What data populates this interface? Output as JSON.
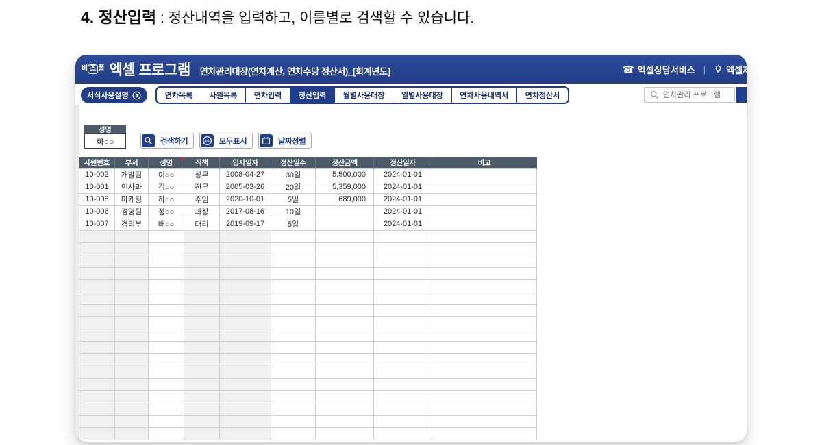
{
  "colors": {
    "accent_navy": "#1e3d8c",
    "header_navy": "#23408d",
    "table_header_slate": "#4d5a68",
    "empty_row_shade": "#f1f1f1"
  },
  "page": {
    "heading_bold": "4. 정산입력",
    "heading_rest": " : 정산내역을 입력하고, 이름별로 검색할 수 있습니다."
  },
  "header": {
    "badge_parts": [
      "비",
      "즈",
      "폼"
    ],
    "brand_title": "엑셀 프로그램",
    "subtitle": "연차관리대장(연차계산, 연차수당 정산서)_[회계년도]",
    "icons": {
      "phone_glyph": "☎",
      "phone_name": "phone-icon",
      "bulb_name": "lightbulb-icon"
    },
    "support_label": "엑셀상담서비스",
    "divider": "|",
    "request_label": "엑셀제"
  },
  "toolbar": {
    "guide_button_label": "서식사용설명",
    "tabs": [
      {
        "label": "연차목록",
        "active": false
      },
      {
        "label": "사원목록",
        "active": false
      },
      {
        "label": "연차입력",
        "active": false
      },
      {
        "label": "정산입력",
        "active": true
      },
      {
        "label": "월별사용대장",
        "active": false
      },
      {
        "label": "일별사용대장",
        "active": false
      },
      {
        "label": "연차사용내역서",
        "active": false
      },
      {
        "label": "연차정산서",
        "active": false
      }
    ],
    "search": {
      "placeholder": "연차관리 프로그램"
    }
  },
  "filter": {
    "name_label": "성명",
    "name_value": "하○○",
    "buttons": [
      {
        "icon": "search-icon",
        "label": "검색하기"
      },
      {
        "icon": "all-icon",
        "icon_text": "ALL",
        "label": "모두표시"
      },
      {
        "icon": "calendar-icon",
        "label": "날짜정렬"
      }
    ]
  },
  "table": {
    "columns": [
      "사원번호",
      "부서",
      "성명",
      "직책",
      "입사일자",
      "정산일수",
      "정산금액",
      "정산일자",
      "비고"
    ],
    "comment_marker_column": "성명",
    "rows": [
      [
        "10-002",
        "개발팀",
        "이○○",
        "상무",
        "2008-04-27",
        "30일",
        "5,500,000",
        "2024-01-01",
        ""
      ],
      [
        "10-001",
        "인사과",
        "김○○",
        "전무",
        "2005-03-26",
        "20일",
        "5,359,000",
        "2024-01-01",
        ""
      ],
      [
        "10-008",
        "마케팅",
        "하○○",
        "주임",
        "2020-10-01",
        "5일",
        "689,000",
        "2024-01-01",
        ""
      ],
      [
        "10-006",
        "경영팀",
        "정○○",
        "과장",
        "2017-08-16",
        "10일",
        "",
        "2024-01-01",
        ""
      ],
      [
        "10-007",
        "경리부",
        "배○○",
        "대리",
        "2019-09-17",
        "5일",
        "",
        "2024-01-01",
        ""
      ]
    ],
    "empty_row_count": 17
  }
}
